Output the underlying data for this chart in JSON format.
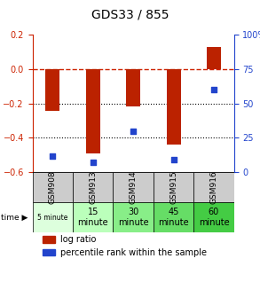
{
  "title": "GDS33 / 855",
  "samples": [
    "GSM908",
    "GSM913",
    "GSM914",
    "GSM915",
    "GSM916"
  ],
  "time_labels": [
    "5 minute",
    "15\nminute",
    "30\nminute",
    "45\nminute",
    "60\nminute"
  ],
  "log_ratio": [
    -0.245,
    -0.49,
    -0.215,
    -0.44,
    0.13
  ],
  "percentile_rank": [
    12,
    7,
    30,
    9,
    60
  ],
  "ylim_left": [
    -0.6,
    0.2
  ],
  "ylim_right": [
    0,
    100
  ],
  "bar_color": "#bb2200",
  "dot_color": "#2244cc",
  "dashed_color": "#cc2200",
  "grid_color": "#000000",
  "bg_color": "#ffffff",
  "time_row_colors": [
    "#ddffdd",
    "#bbffbb",
    "#88ee88",
    "#66dd66",
    "#44cc44"
  ],
  "gsm_row_color": "#cccccc",
  "left_axis_color": "#cc2200",
  "right_axis_color": "#2244cc"
}
